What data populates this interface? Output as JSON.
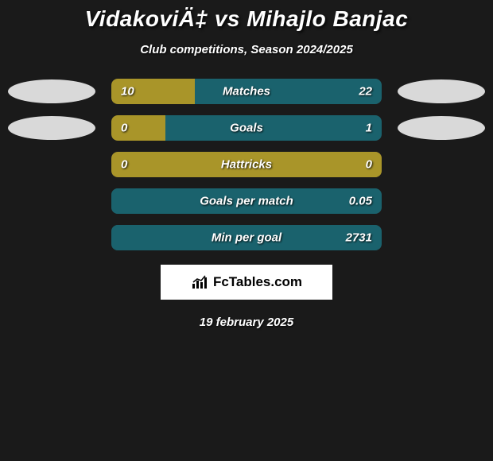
{
  "title": "VidakoviÄ‡ vs Mihajlo Banjac",
  "subtitle": "Club competitions, Season 2024/2025",
  "date": "19 february 2025",
  "logo_text": "FcTables.com",
  "colors": {
    "bar_left": "#a99529",
    "bar_right": "#1a626d",
    "bar_bg": "#333333",
    "ellipse_left": "#d9d9d9",
    "ellipse_right": "#d9d9d9"
  },
  "rows": [
    {
      "label": "Matches",
      "left_value": "10",
      "right_value": "22",
      "left_pct": 31,
      "right_pct": 69,
      "show_left_ellipse": true,
      "show_right_ellipse": true
    },
    {
      "label": "Goals",
      "left_value": "0",
      "right_value": "1",
      "left_pct": 20,
      "right_pct": 80,
      "show_left_ellipse": true,
      "show_right_ellipse": true
    },
    {
      "label": "Hattricks",
      "left_value": "0",
      "right_value": "0",
      "left_pct": 100,
      "right_pct": 0,
      "show_left_ellipse": false,
      "show_right_ellipse": false
    },
    {
      "label": "Goals per match",
      "left_value": "",
      "right_value": "0.05",
      "left_pct": 0,
      "right_pct": 100,
      "show_left_ellipse": false,
      "show_right_ellipse": false
    },
    {
      "label": "Min per goal",
      "left_value": "",
      "right_value": "2731",
      "left_pct": 0,
      "right_pct": 100,
      "show_left_ellipse": false,
      "show_right_ellipse": false
    }
  ]
}
